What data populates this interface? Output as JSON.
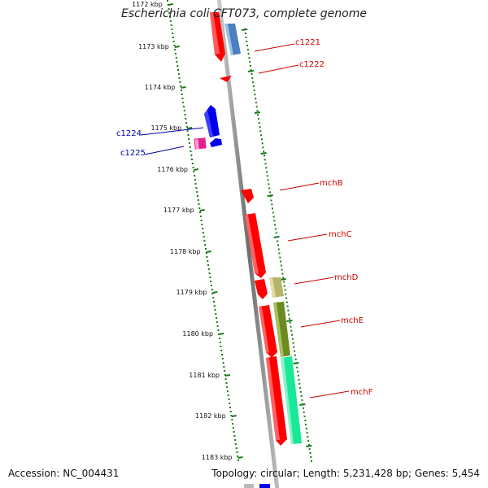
{
  "title": "Escherichia coli CFT073, complete genome",
  "footer": {
    "accession_label": "Accession:",
    "accession": "NC_004431",
    "topology_label": "Topology:",
    "topology": "circular",
    "length_label": "Length:",
    "length": "5,231,428 bp",
    "genes_label": "Genes:",
    "genes": "5,454"
  },
  "colors": {
    "forward_strand": "#ff0000",
    "reverse_strand": "#0000ff",
    "label_forward": "#cc0000",
    "label_reverse": "#0000aa",
    "ruler_ticks": "#1a7a1a",
    "backbone": "#888888"
  },
  "ruler": {
    "unit": "kbp",
    "ticks": [
      "1172 kbp",
      "1173 kbp",
      "1174 kbp",
      "1175 kbp",
      "1176 kbp",
      "1177 kbp",
      "1178 kbp",
      "1179 kbp",
      "1180 kbp",
      "1181 kbp",
      "1182 kbp",
      "1183 kbp"
    ]
  },
  "gene_labels": {
    "forward": [
      "c1221",
      "c1222",
      "mchB",
      "mchC",
      "mchD",
      "mchE",
      "mchF"
    ],
    "reverse": [
      "c1224",
      "c1225"
    ]
  }
}
